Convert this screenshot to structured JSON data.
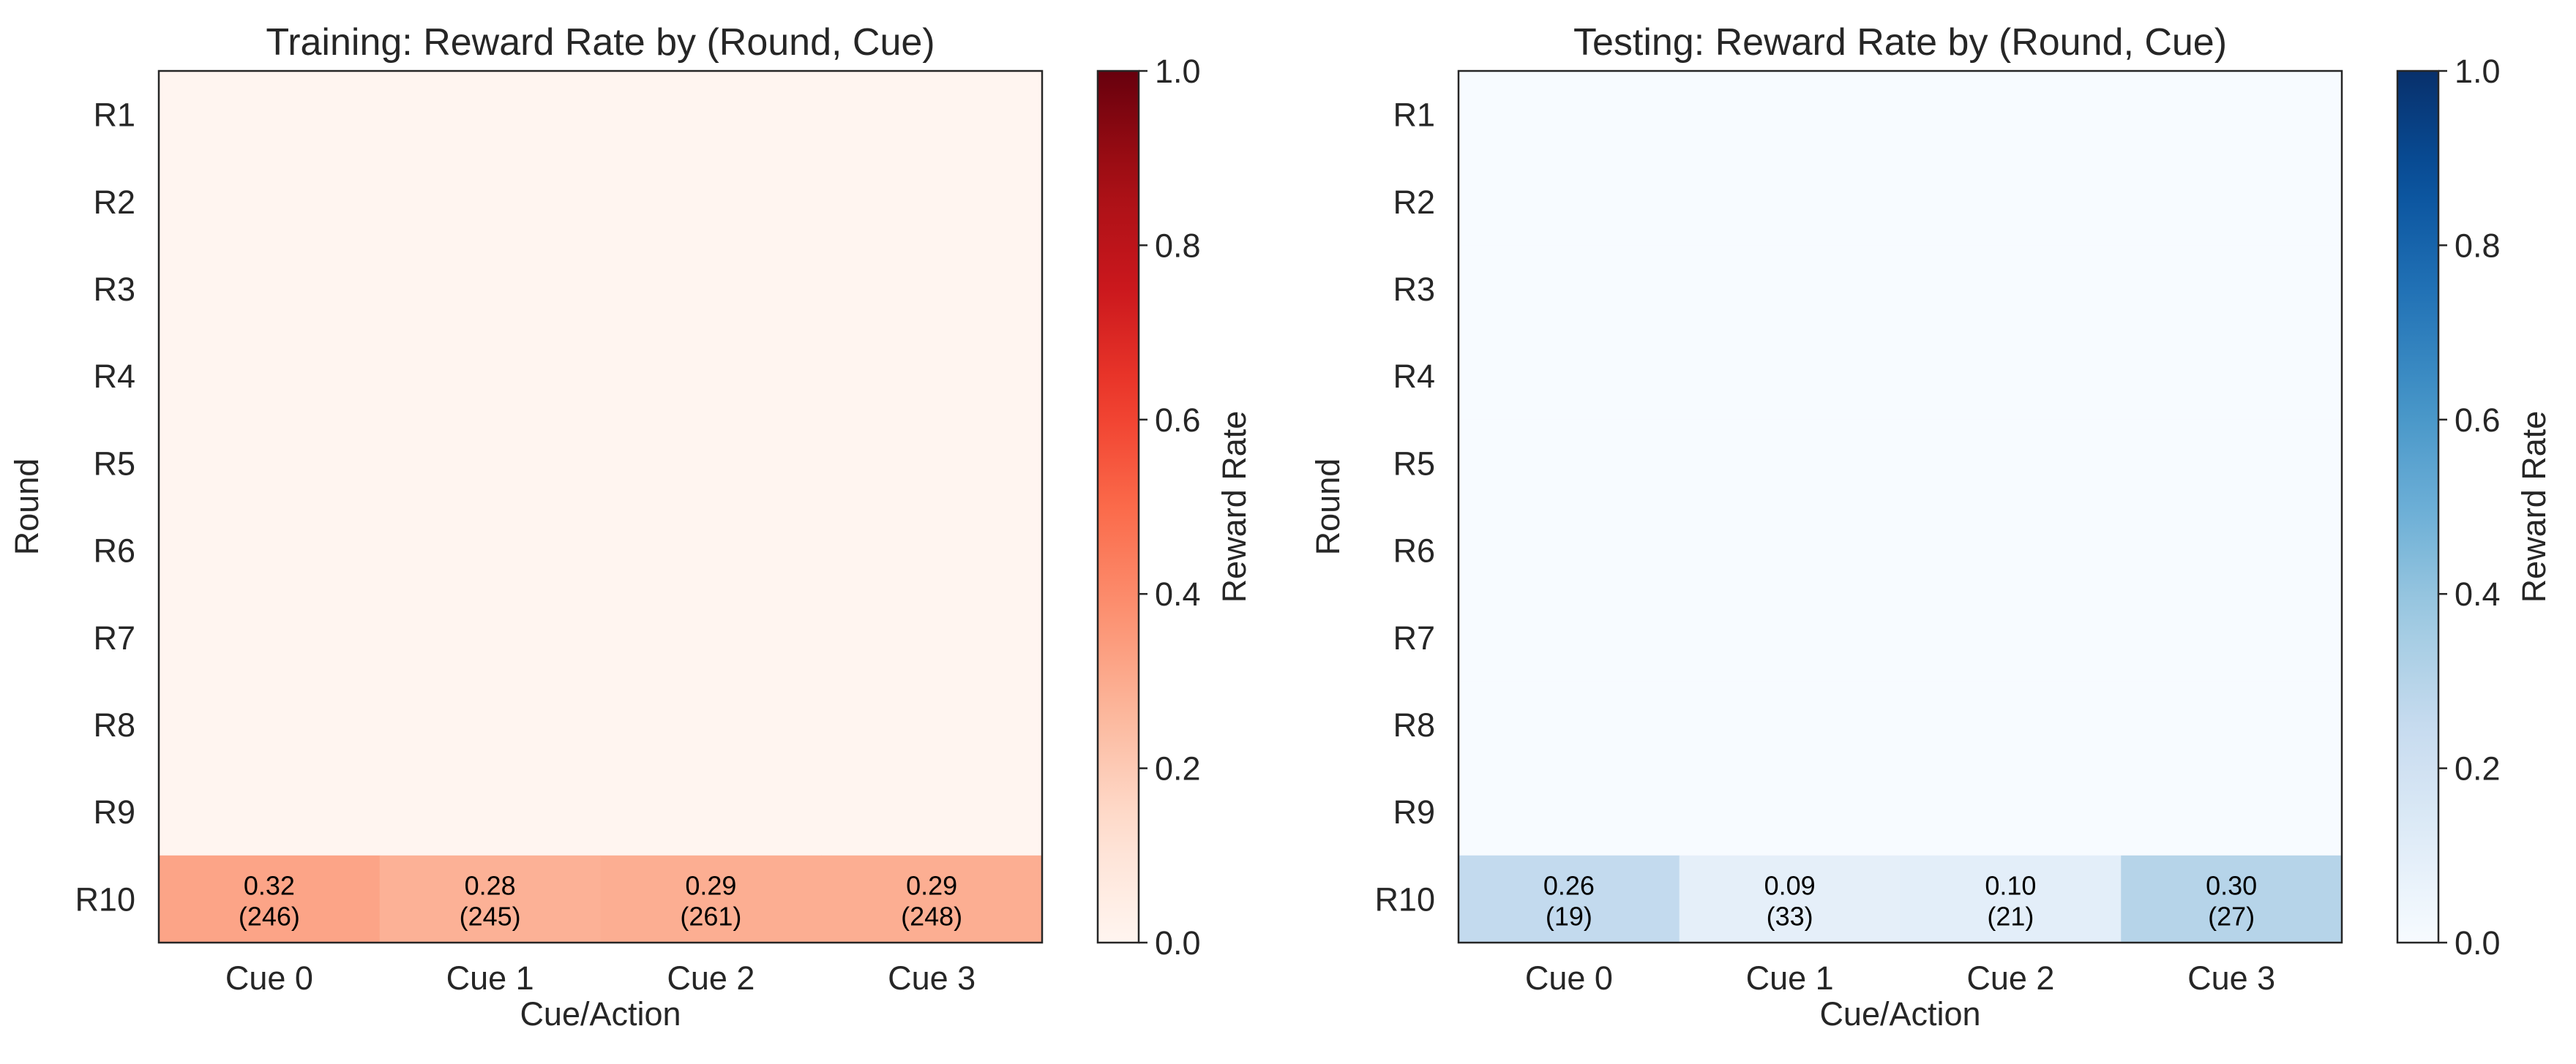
{
  "chart_data": [
    {
      "type": "heatmap",
      "title": "Training: Reward Rate by (Round, Cue)",
      "xlabel": "Cue/Action",
      "ylabel": "Round",
      "x_categories": [
        "Cue 0",
        "Cue 1",
        "Cue 2",
        "Cue 3"
      ],
      "y_categories": [
        "R1",
        "R2",
        "R3",
        "R4",
        "R5",
        "R6",
        "R7",
        "R8",
        "R9",
        "R10"
      ],
      "values": [
        [
          0,
          0,
          0,
          0
        ],
        [
          0,
          0,
          0,
          0
        ],
        [
          0,
          0,
          0,
          0
        ],
        [
          0,
          0,
          0,
          0
        ],
        [
          0,
          0,
          0,
          0
        ],
        [
          0,
          0,
          0,
          0
        ],
        [
          0,
          0,
          0,
          0
        ],
        [
          0,
          0,
          0,
          0
        ],
        [
          0,
          0,
          0,
          0
        ],
        [
          0.32,
          0.28,
          0.29,
          0.29
        ]
      ],
      "cell_labels": [
        [
          null,
          null,
          null,
          null
        ],
        [
          null,
          null,
          null,
          null
        ],
        [
          null,
          null,
          null,
          null
        ],
        [
          null,
          null,
          null,
          null
        ],
        [
          null,
          null,
          null,
          null
        ],
        [
          null,
          null,
          null,
          null
        ],
        [
          null,
          null,
          null,
          null
        ],
        [
          null,
          null,
          null,
          null
        ],
        [
          null,
          null,
          null,
          null
        ],
        [
          [
            "0.32",
            "(246)"
          ],
          [
            "0.28",
            "(245)"
          ],
          [
            "0.29",
            "(261)"
          ],
          [
            "0.29",
            "(248)"
          ]
        ]
      ],
      "colormap": "Reds",
      "color_range": [
        0,
        1
      ],
      "colorbar": {
        "label": "Reward Rate",
        "ticks": [
          "0.0",
          "0.2",
          "0.4",
          "0.6",
          "0.8",
          "1.0"
        ],
        "tick_values": [
          0,
          0.2,
          0.4,
          0.6,
          0.8,
          1.0
        ]
      }
    },
    {
      "type": "heatmap",
      "title": "Testing: Reward Rate by (Round, Cue)",
      "xlabel": "Cue/Action",
      "ylabel": "Round",
      "x_categories": [
        "Cue 0",
        "Cue 1",
        "Cue 2",
        "Cue 3"
      ],
      "y_categories": [
        "R1",
        "R2",
        "R3",
        "R4",
        "R5",
        "R6",
        "R7",
        "R8",
        "R9",
        "R10"
      ],
      "values": [
        [
          0,
          0,
          0,
          0
        ],
        [
          0,
          0,
          0,
          0
        ],
        [
          0,
          0,
          0,
          0
        ],
        [
          0,
          0,
          0,
          0
        ],
        [
          0,
          0,
          0,
          0
        ],
        [
          0,
          0,
          0,
          0
        ],
        [
          0,
          0,
          0,
          0
        ],
        [
          0,
          0,
          0,
          0
        ],
        [
          0,
          0,
          0,
          0
        ],
        [
          0.26,
          0.09,
          0.1,
          0.3
        ]
      ],
      "cell_labels": [
        [
          null,
          null,
          null,
          null
        ],
        [
          null,
          null,
          null,
          null
        ],
        [
          null,
          null,
          null,
          null
        ],
        [
          null,
          null,
          null,
          null
        ],
        [
          null,
          null,
          null,
          null
        ],
        [
          null,
          null,
          null,
          null
        ],
        [
          null,
          null,
          null,
          null
        ],
        [
          null,
          null,
          null,
          null
        ],
        [
          null,
          null,
          null,
          null
        ],
        [
          [
            "0.26",
            "(19)"
          ],
          [
            "0.09",
            "(33)"
          ],
          [
            "0.10",
            "(21)"
          ],
          [
            "0.30",
            "(27)"
          ]
        ]
      ],
      "colormap": "Blues",
      "color_range": [
        0,
        1
      ],
      "colorbar": {
        "label": "Reward Rate",
        "ticks": [
          "0.0",
          "0.2",
          "0.4",
          "0.6",
          "0.8",
          "1.0"
        ],
        "tick_values": [
          0,
          0.2,
          0.4,
          0.6,
          0.8,
          1.0
        ]
      }
    }
  ],
  "colors": {
    "Reds": [
      "#fff5f0",
      "#fee0d2",
      "#fcbba1",
      "#fc9272",
      "#fb6a4a",
      "#ef3b2c",
      "#cb181d",
      "#a50f15",
      "#67000d"
    ],
    "Blues": [
      "#f7fbff",
      "#deebf7",
      "#c6dbef",
      "#9ecae1",
      "#6baed6",
      "#4292c6",
      "#2171b5",
      "#08519c",
      "#08306b"
    ],
    "axis": "#262626"
  }
}
